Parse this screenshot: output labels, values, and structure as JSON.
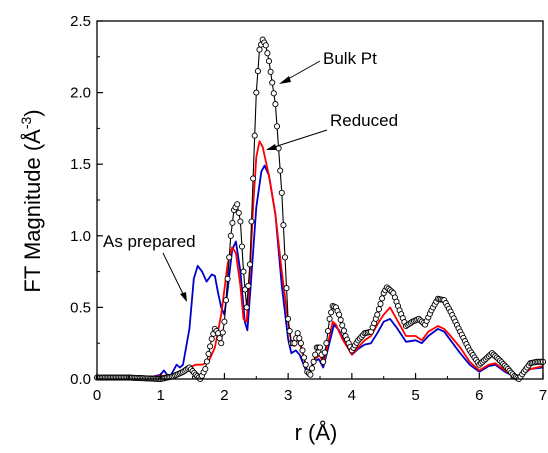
{
  "chart_data": {
    "type": "line",
    "xlabel": "r (Å)",
    "ylabel_main": "FT Magnitude (Å",
    "ylabel_sup": "-3",
    "ylabel_close": ")",
    "xlim": [
      0,
      7
    ],
    "ylim": [
      0,
      2.5
    ],
    "x_ticks": [
      "0",
      "1",
      "2",
      "3",
      "4",
      "5",
      "6",
      "7"
    ],
    "y_ticks": [
      "0.0",
      "0.5",
      "1.0",
      "1.5",
      "2.0",
      "2.5"
    ],
    "grid": false,
    "annotations": {
      "bulk": "Bulk Pt",
      "reduced": "Reduced",
      "as_prepared": "As prepared"
    },
    "series": [
      {
        "key": "bulk",
        "color": "#000000",
        "marker": "open-circle",
        "points": [
          [
            0,
            0.01
          ],
          [
            0.5,
            0.01
          ],
          [
            1.0,
            0.0
          ],
          [
            1.2,
            0.02
          ],
          [
            1.35,
            0.05
          ],
          [
            1.45,
            0.08
          ],
          [
            1.55,
            0.03
          ],
          [
            1.62,
            0.0
          ],
          [
            1.7,
            0.07
          ],
          [
            1.8,
            0.28
          ],
          [
            1.85,
            0.35
          ],
          [
            1.9,
            0.32
          ],
          [
            1.95,
            0.25
          ],
          [
            2.0,
            0.4
          ],
          [
            2.05,
            0.7
          ],
          [
            2.1,
            1.0
          ],
          [
            2.15,
            1.18
          ],
          [
            2.2,
            1.22
          ],
          [
            2.25,
            1.1
          ],
          [
            2.3,
            0.75
          ],
          [
            2.35,
            0.5
          ],
          [
            2.4,
            0.8
          ],
          [
            2.45,
            1.4
          ],
          [
            2.5,
            2.0
          ],
          [
            2.55,
            2.3
          ],
          [
            2.6,
            2.37
          ],
          [
            2.65,
            2.33
          ],
          [
            2.7,
            2.22
          ],
          [
            2.8,
            1.92
          ],
          [
            2.9,
            1.3
          ],
          [
            2.95,
            0.85
          ],
          [
            3.0,
            0.42
          ],
          [
            3.05,
            0.25
          ],
          [
            3.1,
            0.25
          ],
          [
            3.15,
            0.32
          ],
          [
            3.2,
            0.25
          ],
          [
            3.3,
            0.05
          ],
          [
            3.35,
            0.03
          ],
          [
            3.4,
            0.12
          ],
          [
            3.45,
            0.22
          ],
          [
            3.5,
            0.22
          ],
          [
            3.55,
            0.12
          ],
          [
            3.6,
            0.25
          ],
          [
            3.65,
            0.42
          ],
          [
            3.7,
            0.51
          ],
          [
            3.75,
            0.5
          ],
          [
            3.8,
            0.45
          ],
          [
            3.9,
            0.3
          ],
          [
            4.0,
            0.2
          ],
          [
            4.1,
            0.27
          ],
          [
            4.2,
            0.32
          ],
          [
            4.3,
            0.33
          ],
          [
            4.4,
            0.45
          ],
          [
            4.5,
            0.6
          ],
          [
            4.55,
            0.64
          ],
          [
            4.65,
            0.6
          ],
          [
            4.75,
            0.48
          ],
          [
            4.85,
            0.37
          ],
          [
            4.95,
            0.4
          ],
          [
            5.05,
            0.42
          ],
          [
            5.15,
            0.38
          ],
          [
            5.25,
            0.48
          ],
          [
            5.35,
            0.56
          ],
          [
            5.45,
            0.55
          ],
          [
            5.55,
            0.47
          ],
          [
            5.7,
            0.33
          ],
          [
            5.85,
            0.2
          ],
          [
            6.0,
            0.1
          ],
          [
            6.1,
            0.14
          ],
          [
            6.2,
            0.18
          ],
          [
            6.3,
            0.14
          ],
          [
            6.45,
            0.07
          ],
          [
            6.55,
            0.02
          ],
          [
            6.62,
            0.0
          ],
          [
            6.7,
            0.05
          ],
          [
            6.8,
            0.11
          ],
          [
            6.9,
            0.12
          ],
          [
            7.0,
            0.12
          ]
        ]
      },
      {
        "key": "reduced",
        "color": "#ff0000",
        "marker": "none",
        "points": [
          [
            0,
            0.01
          ],
          [
            0.5,
            0.01
          ],
          [
            1.0,
            0.02
          ],
          [
            1.2,
            0.03
          ],
          [
            1.35,
            0.06
          ],
          [
            1.45,
            0.08
          ],
          [
            1.55,
            0.1
          ],
          [
            1.65,
            0.1
          ],
          [
            1.75,
            0.12
          ],
          [
            1.85,
            0.22
          ],
          [
            1.95,
            0.45
          ],
          [
            2.05,
            0.8
          ],
          [
            2.12,
            0.92
          ],
          [
            2.18,
            0.88
          ],
          [
            2.25,
            0.65
          ],
          [
            2.3,
            0.42
          ],
          [
            2.35,
            0.4
          ],
          [
            2.4,
            0.75
          ],
          [
            2.45,
            1.2
          ],
          [
            2.5,
            1.55
          ],
          [
            2.55,
            1.66
          ],
          [
            2.6,
            1.62
          ],
          [
            2.7,
            1.42
          ],
          [
            2.8,
            1.15
          ],
          [
            2.9,
            0.75
          ],
          [
            3.0,
            0.4
          ],
          [
            3.05,
            0.25
          ],
          [
            3.1,
            0.23
          ],
          [
            3.15,
            0.28
          ],
          [
            3.2,
            0.22
          ],
          [
            3.3,
            0.06
          ],
          [
            3.35,
            0.05
          ],
          [
            3.42,
            0.14
          ],
          [
            3.5,
            0.17
          ],
          [
            3.55,
            0.1
          ],
          [
            3.6,
            0.2
          ],
          [
            3.7,
            0.4
          ],
          [
            3.75,
            0.38
          ],
          [
            3.85,
            0.28
          ],
          [
            4.0,
            0.17
          ],
          [
            4.1,
            0.22
          ],
          [
            4.2,
            0.27
          ],
          [
            4.3,
            0.3
          ],
          [
            4.4,
            0.38
          ],
          [
            4.5,
            0.45
          ],
          [
            4.6,
            0.5
          ],
          [
            4.7,
            0.42
          ],
          [
            4.85,
            0.3
          ],
          [
            5.0,
            0.3
          ],
          [
            5.1,
            0.27
          ],
          [
            5.2,
            0.33
          ],
          [
            5.35,
            0.37
          ],
          [
            5.45,
            0.35
          ],
          [
            5.55,
            0.3
          ],
          [
            5.7,
            0.22
          ],
          [
            5.85,
            0.12
          ],
          [
            6.0,
            0.06
          ],
          [
            6.15,
            0.1
          ],
          [
            6.25,
            0.11
          ],
          [
            6.4,
            0.06
          ],
          [
            6.55,
            0.02
          ],
          [
            6.65,
            0.03
          ],
          [
            6.8,
            0.07
          ],
          [
            7.0,
            0.09
          ]
        ]
      },
      {
        "key": "as_prepared",
        "color": "#0000cc",
        "marker": "none",
        "points": [
          [
            0,
            0.0
          ],
          [
            0.5,
            0.01
          ],
          [
            0.8,
            0.01
          ],
          [
            1.0,
            0.03
          ],
          [
            1.05,
            0.06
          ],
          [
            1.1,
            0.03
          ],
          [
            1.15,
            0.02
          ],
          [
            1.2,
            0.06
          ],
          [
            1.25,
            0.1
          ],
          [
            1.3,
            0.08
          ],
          [
            1.35,
            0.1
          ],
          [
            1.45,
            0.35
          ],
          [
            1.52,
            0.7
          ],
          [
            1.58,
            0.79
          ],
          [
            1.65,
            0.75
          ],
          [
            1.72,
            0.68
          ],
          [
            1.8,
            0.73
          ],
          [
            1.85,
            0.72
          ],
          [
            1.9,
            0.6
          ],
          [
            1.95,
            0.5
          ],
          [
            2.0,
            0.45
          ],
          [
            2.05,
            0.62
          ],
          [
            2.12,
            0.9
          ],
          [
            2.18,
            0.96
          ],
          [
            2.25,
            0.75
          ],
          [
            2.32,
            0.4
          ],
          [
            2.36,
            0.34
          ],
          [
            2.42,
            0.7
          ],
          [
            2.5,
            1.2
          ],
          [
            2.58,
            1.45
          ],
          [
            2.63,
            1.49
          ],
          [
            2.7,
            1.42
          ],
          [
            2.8,
            1.15
          ],
          [
            2.9,
            0.65
          ],
          [
            3.0,
            0.28
          ],
          [
            3.05,
            0.18
          ],
          [
            3.12,
            0.2
          ],
          [
            3.18,
            0.17
          ],
          [
            3.28,
            0.06
          ],
          [
            3.32,
            0.04
          ],
          [
            3.4,
            0.12
          ],
          [
            3.48,
            0.14
          ],
          [
            3.55,
            0.08
          ],
          [
            3.62,
            0.2
          ],
          [
            3.72,
            0.38
          ],
          [
            3.8,
            0.34
          ],
          [
            3.9,
            0.25
          ],
          [
            4.0,
            0.17
          ],
          [
            4.1,
            0.21
          ],
          [
            4.2,
            0.24
          ],
          [
            4.3,
            0.25
          ],
          [
            4.4,
            0.32
          ],
          [
            4.5,
            0.4
          ],
          [
            4.6,
            0.42
          ],
          [
            4.7,
            0.36
          ],
          [
            4.85,
            0.26
          ],
          [
            5.0,
            0.27
          ],
          [
            5.1,
            0.25
          ],
          [
            5.2,
            0.3
          ],
          [
            5.35,
            0.35
          ],
          [
            5.45,
            0.33
          ],
          [
            5.55,
            0.27
          ],
          [
            5.7,
            0.18
          ],
          [
            5.85,
            0.1
          ],
          [
            6.0,
            0.05
          ],
          [
            6.15,
            0.09
          ],
          [
            6.25,
            0.1
          ],
          [
            6.4,
            0.05
          ],
          [
            6.55,
            0.02
          ],
          [
            6.65,
            0.02
          ],
          [
            6.8,
            0.07
          ],
          [
            7.0,
            0.08
          ]
        ]
      }
    ]
  }
}
